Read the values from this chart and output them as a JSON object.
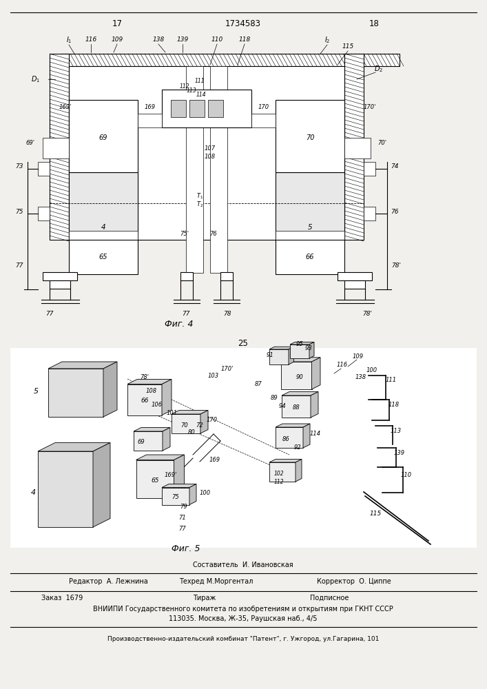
{
  "page_width": 7.07,
  "page_height": 10.0,
  "bg_color": "#f2f0ed",
  "page_num_left": "17",
  "page_num_center": "1734583",
  "page_num_right": "18",
  "fig4_caption": "Фиг. 4",
  "fig5_caption": "Фиг. 5",
  "mid_num": "25",
  "editor_line": "Редактор  А. Лежнина",
  "compositor_line1": "Составитель  И. Ивановская",
  "compositor_line2": "Техред М.Моргентал",
  "corrector_line": "Корректор  О. Циппе",
  "order_line": "Заказ  1679",
  "tirazh_line": "Тираж",
  "podpisnoe_line": "Подписное",
  "vniiipi_line": "ВНИИПИ Государственного комитета по изобретениям и открытиям при ГКНТ СССР",
  "address_line": "113035. Москва, Ж-35, Раушская наб., 4/5",
  "publisher_line": "Производственно-издательский комбинат \"Патент\", г. Ужгород, ул.Гагарина, 101",
  "text_fontsize": 7.0,
  "caption_fontsize": 8.5,
  "num_fontsize": 8.5
}
